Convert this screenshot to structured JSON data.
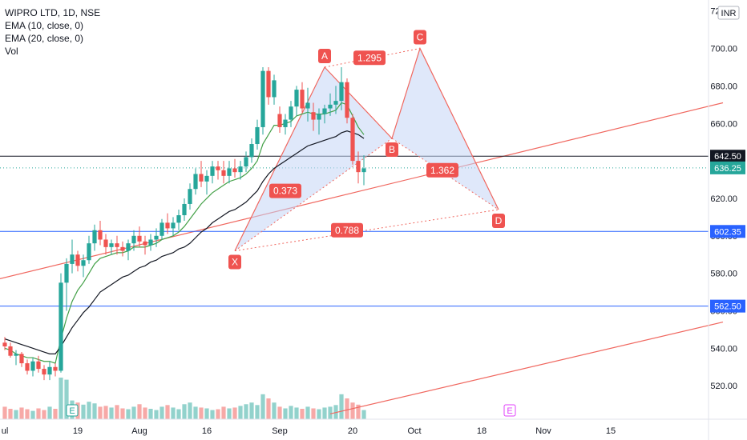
{
  "legend": {
    "symbol": "WIPRO LTD, 1D, NSE",
    "ema10": "EMA (10, close, 0)",
    "ema20": "EMA (20, close, 0)",
    "vol": "Vol"
  },
  "currency": "INR",
  "colors": {
    "up": "#26a69a",
    "down": "#ef5350",
    "ema10": "#43a047",
    "ema20": "#131722",
    "pattern_fill": "#c5d5f5",
    "pattern_line": "#f0675f",
    "hline_blue": "#2962ff",
    "hline_black": "#131722",
    "price_label_dark": "#131722",
    "price_label_teal": "#26a69a",
    "price_label_blue": "#2962ff"
  },
  "chart_data": {
    "type": "candlestick",
    "y_axis": {
      "ticks": [
        "520.00",
        "540.00",
        "560.00",
        "580.00",
        "600.00",
        "620.00",
        "640.00",
        "660.00",
        "680.00",
        "700.00",
        "720.00"
      ],
      "range": [
        503,
        725
      ]
    },
    "x_axis": {
      "labels": [
        {
          "text": "ul",
          "idx": 0
        },
        {
          "text": "19",
          "idx": 13
        },
        {
          "text": "Aug",
          "idx": 24
        },
        {
          "text": "16",
          "idx": 36
        },
        {
          "text": "Sep",
          "idx": 49
        },
        {
          "text": "20",
          "idx": 62
        },
        {
          "text": "Oct",
          "idx": 73
        },
        {
          "text": "18",
          "idx": 85
        },
        {
          "text": "Nov",
          "idx": 96
        },
        {
          "text": "15",
          "idx": 108
        }
      ]
    },
    "candles": [
      [
        543,
        546,
        539,
        541
      ],
      [
        541,
        543,
        535,
        536
      ],
      [
        536,
        539,
        531,
        537
      ],
      [
        537,
        538,
        530,
        532
      ],
      [
        532,
        534,
        526,
        528
      ],
      [
        528,
        535,
        525,
        533
      ],
      [
        533,
        536,
        527,
        529
      ],
      [
        529,
        531,
        523,
        526
      ],
      [
        526,
        533,
        523,
        530
      ],
      [
        530,
        532,
        525,
        528
      ],
      [
        528,
        580,
        527,
        575
      ],
      [
        575,
        588,
        560,
        585
      ],
      [
        585,
        598,
        580,
        590
      ],
      [
        590,
        592,
        581,
        584
      ],
      [
        584,
        590,
        578,
        587
      ],
      [
        587,
        600,
        585,
        596
      ],
      [
        596,
        606,
        592,
        603
      ],
      [
        603,
        608,
        595,
        598
      ],
      [
        598,
        601,
        590,
        594
      ],
      [
        594,
        598,
        590,
        596
      ],
      [
        596,
        600,
        590,
        594
      ],
      [
        594,
        597,
        589,
        592
      ],
      [
        592,
        598,
        587,
        596
      ],
      [
        596,
        603,
        592,
        600
      ],
      [
        600,
        605,
        594,
        597
      ],
      [
        597,
        600,
        590,
        595
      ],
      [
        595,
        601,
        592,
        598
      ],
      [
        598,
        604,
        594,
        600
      ],
      [
        600,
        609,
        598,
        607
      ],
      [
        607,
        612,
        601,
        604
      ],
      [
        604,
        610,
        600,
        607
      ],
      [
        607,
        614,
        603,
        611
      ],
      [
        611,
        620,
        608,
        617
      ],
      [
        617,
        628,
        614,
        625
      ],
      [
        625,
        636,
        622,
        633
      ],
      [
        633,
        640,
        626,
        629
      ],
      [
        629,
        635,
        622,
        632
      ],
      [
        632,
        640,
        628,
        637
      ],
      [
        637,
        640,
        630,
        635
      ],
      [
        635,
        640,
        628,
        632
      ],
      [
        632,
        640,
        628,
        636
      ],
      [
        636,
        641,
        631,
        634
      ],
      [
        634,
        640,
        630,
        637
      ],
      [
        637,
        645,
        634,
        642
      ],
      [
        642,
        652,
        639,
        649
      ],
      [
        649,
        662,
        646,
        658
      ],
      [
        658,
        690,
        654,
        688
      ],
      [
        688,
        690,
        670,
        674
      ],
      [
        674,
        686,
        670,
        683
      ],
      [
        665,
        669,
        655,
        658
      ],
      [
        658,
        665,
        654,
        662
      ],
      [
        662,
        672,
        658,
        669
      ],
      [
        669,
        680,
        664,
        678
      ],
      [
        678,
        682,
        666,
        668
      ],
      [
        668,
        679,
        661,
        671
      ],
      [
        666,
        671,
        656,
        662
      ],
      [
        662,
        668,
        654,
        665
      ],
      [
        665,
        670,
        660,
        668
      ],
      [
        668,
        676,
        664,
        670
      ],
      [
        670,
        680,
        665,
        672
      ],
      [
        672,
        690,
        667,
        682
      ],
      [
        682,
        684,
        660,
        663
      ],
      [
        663,
        665,
        638,
        640
      ],
      [
        640,
        645,
        628,
        634
      ],
      [
        634,
        643,
        627,
        636
      ]
    ],
    "candle_x_start": 0,
    "ema10": [
      540,
      539,
      537,
      536,
      535,
      535,
      534,
      533,
      533,
      532,
      545,
      556,
      565,
      571,
      575,
      580,
      585,
      588,
      589,
      590,
      591,
      591,
      592,
      594,
      594,
      594,
      595,
      596,
      598,
      599,
      600,
      602,
      605,
      609,
      613,
      617,
      620,
      623,
      625,
      627,
      629,
      630,
      631,
      633,
      636,
      640,
      649,
      654,
      659,
      659,
      660,
      661,
      664,
      665,
      666,
      665,
      665,
      665,
      666,
      667,
      671,
      670,
      664,
      658,
      654
    ],
    "ema20": [
      545,
      544,
      543,
      542,
      541,
      540,
      539,
      538,
      537,
      537,
      541,
      546,
      551,
      555,
      559,
      562,
      566,
      570,
      572,
      574,
      576,
      578,
      579,
      581,
      583,
      584,
      586,
      587,
      589,
      590,
      591,
      593,
      594,
      596,
      599,
      602,
      604,
      607,
      609,
      611,
      613,
      614,
      616,
      618,
      621,
      624,
      629,
      633,
      636,
      638,
      640,
      642,
      644,
      646,
      648,
      649,
      650,
      651,
      652,
      653,
      655,
      656,
      655,
      654,
      652
    ],
    "volume": [
      0.3,
      0.25,
      0.22,
      0.28,
      0.24,
      0.2,
      0.26,
      0.22,
      0.3,
      0.25,
      1.0,
      0.95,
      0.45,
      0.4,
      0.35,
      0.42,
      0.38,
      0.3,
      0.32,
      0.28,
      0.34,
      0.26,
      0.24,
      0.3,
      0.36,
      0.28,
      0.25,
      0.22,
      0.3,
      0.34,
      0.28,
      0.24,
      0.36,
      0.4,
      0.3,
      0.28,
      0.26,
      0.22,
      0.24,
      0.3,
      0.26,
      0.28,
      0.32,
      0.36,
      0.4,
      0.34,
      0.6,
      0.5,
      0.4,
      0.3,
      0.26,
      0.32,
      0.28,
      0.25,
      0.3,
      0.26,
      0.24,
      0.28,
      0.3,
      0.34,
      0.6,
      0.5,
      0.4,
      0.35,
      0.22
    ],
    "pattern": {
      "points": [
        {
          "label": "X",
          "idx": 41,
          "price": 592
        },
        {
          "label": "A",
          "idx": 57,
          "price": 690
        },
        {
          "label": "B",
          "idx": 69,
          "price": 652
        },
        {
          "label": "C",
          "idx": 74,
          "price": 700
        },
        {
          "label": "D",
          "idx": 88,
          "price": 614
        }
      ],
      "ratios": [
        {
          "text": "0.373",
          "idx": 50,
          "price": 624
        },
        {
          "text": "1.295",
          "idx": 65,
          "price": 695
        },
        {
          "text": "0.788",
          "idx": 61,
          "price": 603
        },
        {
          "text": "1.362",
          "idx": 78,
          "price": 635
        }
      ]
    },
    "hlines": [
      {
        "price": 642.5,
        "label": "642.50",
        "color": "#131722",
        "style": "solid"
      },
      {
        "price": 636.25,
        "label": "636.25",
        "color": "#26a69a",
        "style": "dotted"
      },
      {
        "price": 602.35,
        "label": "602.35",
        "color": "#2962ff",
        "style": "solid"
      },
      {
        "price": 562.5,
        "label": "562.50",
        "color": "#2962ff",
        "style": "solid"
      }
    ],
    "trendlines": [
      {
        "from": {
          "idx": -1,
          "price": 577
        },
        "to": {
          "idx": 128,
          "price": 671
        }
      },
      {
        "from": {
          "idx": 58,
          "price": 505
        },
        "to": {
          "idx": 128,
          "price": 554
        }
      }
    ],
    "events": [
      {
        "text": "E",
        "idx": 12,
        "color": "#26a69a"
      },
      {
        "text": "E",
        "idx": 90,
        "color": "#e040fb"
      }
    ]
  }
}
